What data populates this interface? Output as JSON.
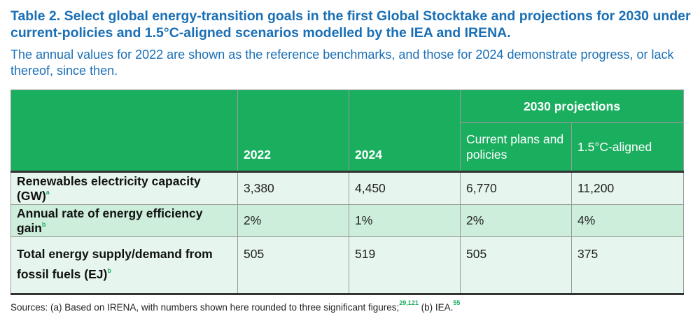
{
  "title": "Table 2. Select global energy-transition goals in the first Global Stocktake and projections for 2030 under current-policies and 1.5°C-aligned scenarios modelled by the IEA and IRENA.",
  "subtitle": "The annual values for 2022 are shown as the reference benchmarks, and those for 2024 demonstrate progress, or lack thereof, since then.",
  "table": {
    "projections_header": "2030 projections",
    "col_2022": "2022",
    "col_2024": "2024",
    "col_current": "Current plans and policies",
    "col_aligned": "1.5°C-aligned",
    "rows": [
      {
        "label": "Renewables electricity capacity (GW)",
        "note": "a",
        "v2022": "3,380",
        "v2024": "4,450",
        "current": "6,770",
        "aligned": "11,200"
      },
      {
        "label": "Annual rate of energy efficiency gain",
        "note": "b",
        "v2022": "2%",
        "v2024": "1%",
        "current": "2%",
        "aligned": "4%"
      },
      {
        "label": "Total energy supply/demand from fossil fuels (EJ)",
        "note": "b",
        "v2022": "505",
        "v2024": "519",
        "current": "505",
        "aligned": "375"
      }
    ]
  },
  "sources": {
    "text_a": "Sources: (a) Based on IRENA, with numbers shown here rounded to three significant figures;",
    "ref_a": "29,121",
    "text_b": " (b) IEA.",
    "ref_b": "55"
  },
  "colors": {
    "title": "#1a6fb5",
    "header_green": "#1aae5f",
    "row_light": "#e6f6ee",
    "row_mid": "#cdeedb"
  }
}
